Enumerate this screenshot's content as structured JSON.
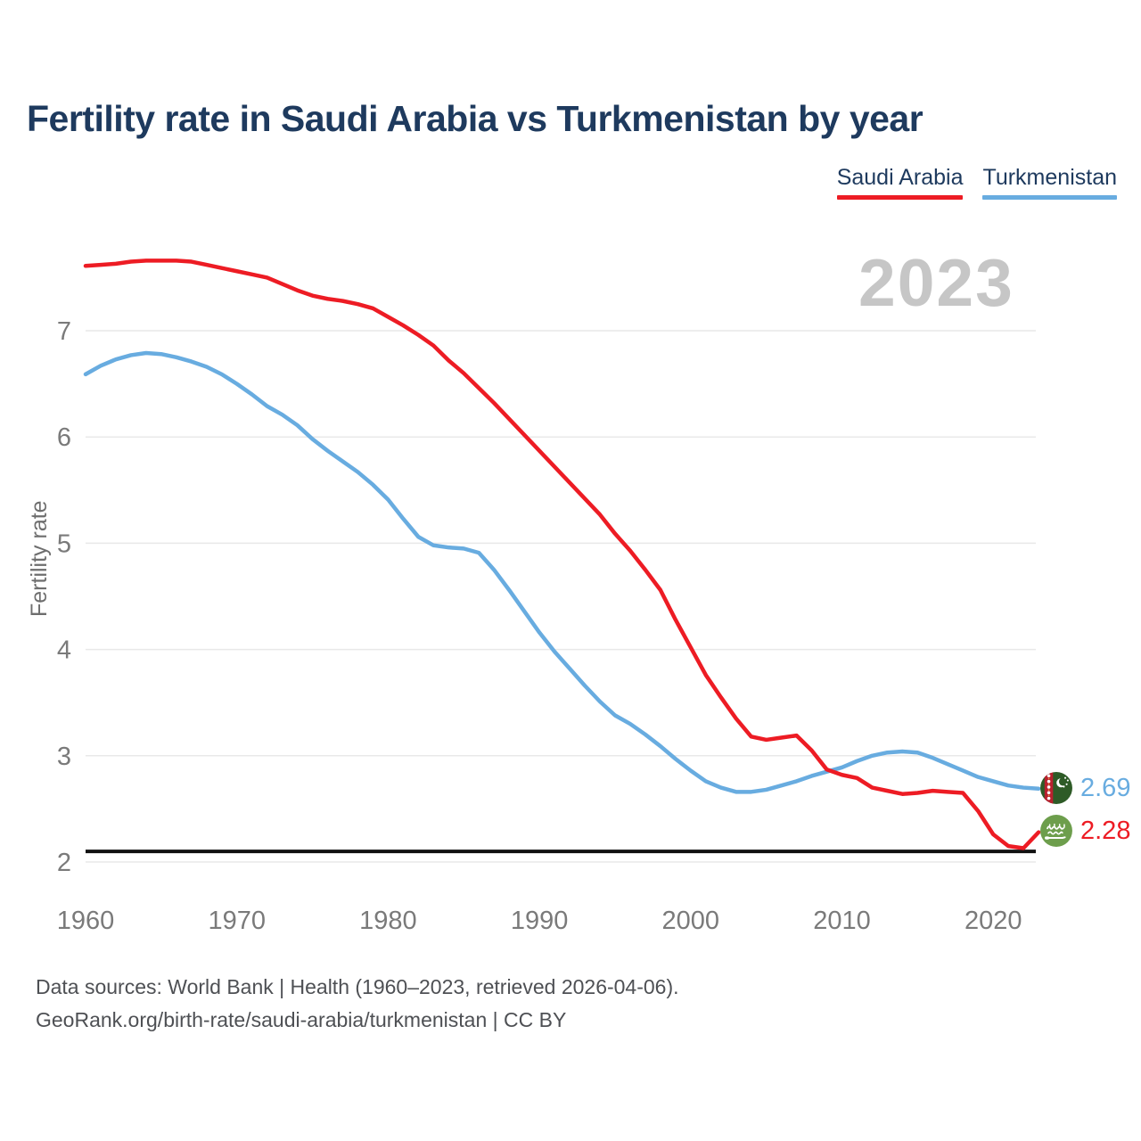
{
  "footer": {
    "line1": "Data sources: World Bank | Health (1960–2023, retrieved 2026-04-06).",
    "line2": "GeoRank.org/birth-rate/saudi-arabia/turkmenistan | CC BY"
  },
  "chart_data": {
    "type": "line",
    "title": "Fertility rate in Saudi Arabia vs Turkmenistan by year",
    "xlabel": "",
    "ylabel": "Fertility rate",
    "watermark": "2023",
    "grid": true,
    "legend_position": "top-right",
    "xlim": [
      1960,
      2023
    ],
    "ylim": [
      2,
      7.8
    ],
    "yticks": [
      2,
      3,
      4,
      5,
      6,
      7
    ],
    "xticks": [
      1960,
      1970,
      1980,
      1990,
      2000,
      2010,
      2020
    ],
    "reference_line": {
      "value": 2.1,
      "color": "#111111"
    },
    "x": [
      1960,
      1961,
      1962,
      1963,
      1964,
      1965,
      1966,
      1967,
      1968,
      1969,
      1970,
      1971,
      1972,
      1973,
      1974,
      1975,
      1976,
      1977,
      1978,
      1979,
      1980,
      1981,
      1982,
      1983,
      1984,
      1985,
      1986,
      1987,
      1988,
      1989,
      1990,
      1991,
      1992,
      1993,
      1994,
      1995,
      1996,
      1997,
      1998,
      1999,
      2000,
      2001,
      2002,
      2003,
      2004,
      2005,
      2006,
      2007,
      2008,
      2009,
      2010,
      2011,
      2012,
      2013,
      2014,
      2015,
      2016,
      2017,
      2018,
      2019,
      2020,
      2021,
      2022,
      2023
    ],
    "series": [
      {
        "name": "Saudi Arabia",
        "color": "#ed1c24",
        "end_label": "2.28",
        "values": [
          7.61,
          7.62,
          7.63,
          7.65,
          7.66,
          7.66,
          7.66,
          7.65,
          7.62,
          7.59,
          7.56,
          7.53,
          7.5,
          7.44,
          7.38,
          7.33,
          7.3,
          7.28,
          7.25,
          7.21,
          7.13,
          7.05,
          6.96,
          6.86,
          6.72,
          6.6,
          6.46,
          6.32,
          6.17,
          6.02,
          5.87,
          5.72,
          5.57,
          5.42,
          5.27,
          5.09,
          4.93,
          4.75,
          4.56,
          4.28,
          4.02,
          3.76,
          3.55,
          3.35,
          3.18,
          3.15,
          3.17,
          3.19,
          3.05,
          2.87,
          2.82,
          2.79,
          2.7,
          2.67,
          2.64,
          2.65,
          2.67,
          2.66,
          2.65,
          2.48,
          2.26,
          2.15,
          2.13,
          2.28
        ]
      },
      {
        "name": "Turkmenistan",
        "color": "#68ace0",
        "end_label": "2.69",
        "values": [
          6.59,
          6.67,
          6.73,
          6.77,
          6.79,
          6.78,
          6.75,
          6.71,
          6.66,
          6.59,
          6.5,
          6.4,
          6.29,
          6.21,
          6.11,
          5.98,
          5.87,
          5.77,
          5.67,
          5.55,
          5.41,
          5.23,
          5.06,
          4.98,
          4.96,
          4.95,
          4.91,
          4.75,
          4.56,
          4.36,
          4.16,
          3.98,
          3.82,
          3.66,
          3.51,
          3.38,
          3.3,
          3.2,
          3.09,
          2.97,
          2.86,
          2.76,
          2.7,
          2.66,
          2.66,
          2.68,
          2.72,
          2.76,
          2.81,
          2.85,
          2.89,
          2.95,
          3.0,
          3.03,
          3.04,
          3.03,
          2.98,
          2.92,
          2.86,
          2.8,
          2.76,
          2.72,
          2.7,
          2.69
        ]
      }
    ]
  }
}
